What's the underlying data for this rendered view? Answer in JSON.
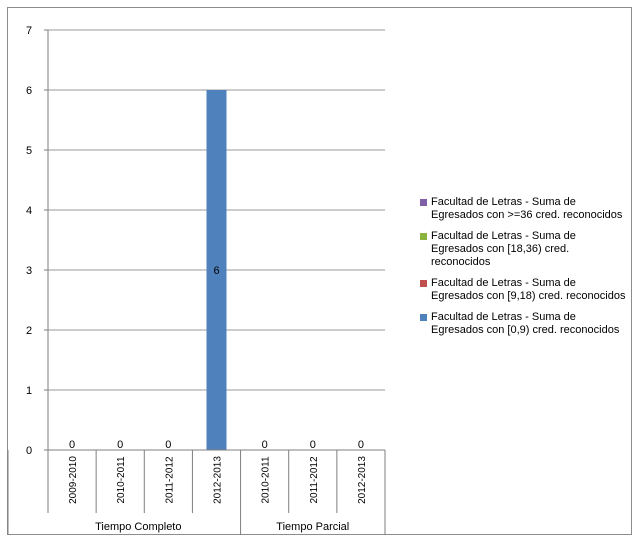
{
  "chart_data": {
    "type": "bar",
    "y_axis": {
      "min": 0,
      "max": 7,
      "step": 1,
      "ticks": [
        "0",
        "1",
        "2",
        "3",
        "4",
        "5",
        "6",
        "7"
      ]
    },
    "categories": [
      "2009-2010",
      "2010-2011",
      "2011-2012",
      "2012-2013",
      "2010-2011",
      "2011-2012",
      "2012-2013"
    ],
    "groups": [
      {
        "label": "Tiempo Completo",
        "span": 4
      },
      {
        "label": "Tiempo Parcial",
        "span": 3
      }
    ],
    "series": [
      {
        "name": "Facultad de Letras - Suma de Egresados con >=36 cred. reconocidos",
        "color": "#7f5fa6",
        "values": [
          0,
          0,
          0,
          0,
          0,
          0,
          0
        ]
      },
      {
        "name": "Facultad de Letras - Suma de Egresados con [18,36) cred. reconocidos",
        "color": "#8db33f",
        "values": [
          0,
          0,
          0,
          0,
          0,
          0,
          0
        ]
      },
      {
        "name": "Facultad de Letras - Suma de Egresados con [9,18) cred. reconocidos",
        "color": "#c0504d",
        "values": [
          0,
          0,
          0,
          0,
          0,
          0,
          0
        ]
      },
      {
        "name": "Facultad de Letras - Suma de Egresados con [0,9) cred. reconocidos",
        "color": "#4f81bd",
        "values": [
          0,
          0,
          0,
          6,
          0,
          0,
          0
        ]
      }
    ],
    "data_labels": [
      "0",
      "0",
      "0",
      "6",
      "0",
      "0",
      "0"
    ],
    "grid": true,
    "stacked": true,
    "legend_position": "right"
  }
}
